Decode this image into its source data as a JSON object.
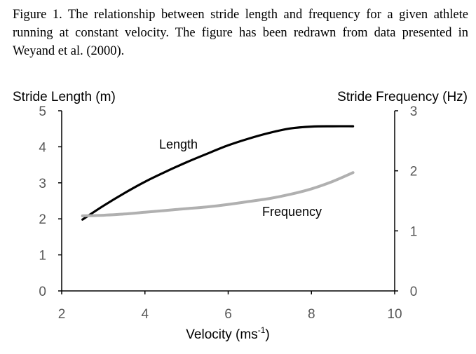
{
  "caption": "Figure 1. The relationship between stride length and frequency for a given athlete running at constant velocity. The figure has been redrawn from data presented in Weyand et al. (2000).",
  "chart_data": {
    "type": "line",
    "title": "",
    "xlabel": "Velocity (ms",
    "xlabel_sup": "-1",
    "xlabel_end": ")",
    "ylabel_left": "Stride Length (m)",
    "ylabel_right": "Stride Frequency (Hz)",
    "xlim": [
      2,
      10
    ],
    "ylim_left": [
      0,
      5
    ],
    "ylim_right": [
      0,
      3
    ],
    "xticks": [
      "2",
      "4",
      "6",
      "8",
      "10"
    ],
    "yticks_left": [
      "0",
      "1",
      "2",
      "3",
      "4",
      "5"
    ],
    "yticks_right": [
      "0",
      "1",
      "2",
      "3"
    ],
    "grid": false,
    "series": [
      {
        "name": "Length",
        "axis": "left",
        "color": "#000000",
        "x": [
          2.5,
          3.0,
          3.5,
          4.0,
          4.5,
          5.0,
          5.5,
          6.0,
          6.5,
          7.0,
          7.5,
          8.0,
          8.5,
          9.0
        ],
        "y": [
          1.98,
          2.36,
          2.71,
          3.03,
          3.31,
          3.57,
          3.81,
          4.04,
          4.23,
          4.39,
          4.51,
          4.56,
          4.57,
          4.57
        ]
      },
      {
        "name": "Frequency",
        "axis": "right",
        "color": "#b0b0b0",
        "x": [
          2.5,
          3.0,
          3.5,
          4.0,
          4.5,
          5.0,
          5.5,
          6.0,
          6.5,
          7.0,
          7.5,
          8.0,
          8.5,
          9.0
        ],
        "y": [
          1.25,
          1.26,
          1.28,
          1.31,
          1.34,
          1.37,
          1.4,
          1.44,
          1.49,
          1.54,
          1.61,
          1.7,
          1.82,
          1.97
        ]
      }
    ]
  }
}
